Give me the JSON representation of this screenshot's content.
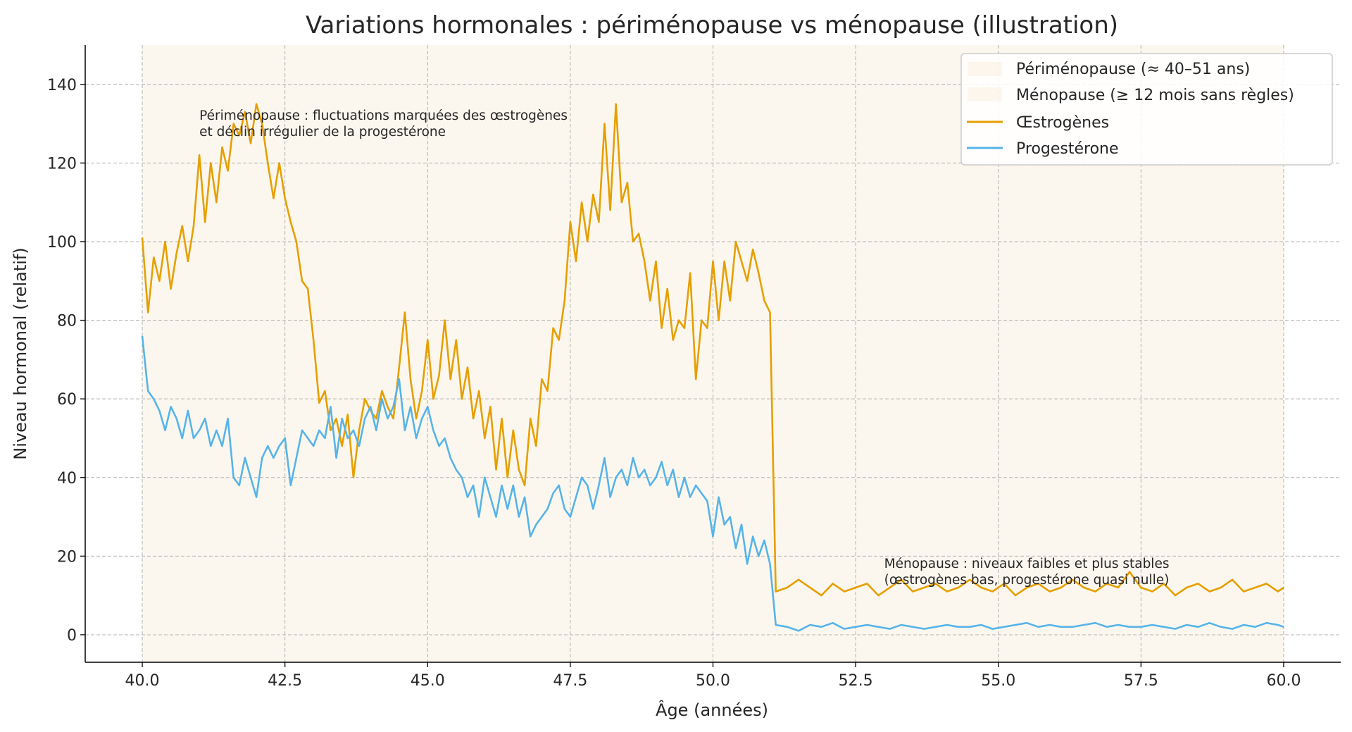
{
  "chart_data": {
    "type": "line",
    "title": "Variations hormonales : périménopause vs ménopause (illustration)",
    "xlabel": "Âge (années)",
    "ylabel": "Niveau hormonal (relatif)",
    "xlim": [
      39,
      61
    ],
    "ylim": [
      -7,
      150
    ],
    "xticks": [
      40.0,
      42.5,
      45.0,
      47.5,
      50.0,
      52.5,
      55.0,
      57.5,
      60.0
    ],
    "xtick_labels": [
      "40.0",
      "42.5",
      "45.0",
      "47.5",
      "50.0",
      "52.5",
      "55.0",
      "57.5",
      "60.0"
    ],
    "yticks": [
      0,
      20,
      40,
      60,
      80,
      100,
      120,
      140
    ],
    "ytick_labels": [
      "0",
      "20",
      "40",
      "60",
      "80",
      "100",
      "120",
      "140"
    ],
    "grid": true,
    "legend_placement": "top-right",
    "spans": [
      {
        "name": "Périménopause (≈ 40–51 ans)",
        "from": 40,
        "to": 51,
        "color": "#f5e6c8"
      },
      {
        "name": "Ménopause (≥ 12 mois sans règles)",
        "from": 51,
        "to": 60,
        "color": "#f5e6c8"
      }
    ],
    "x": [
      40.0,
      40.1,
      40.2,
      40.3,
      40.4,
      40.5,
      40.6,
      40.7,
      40.8,
      40.9,
      41.0,
      41.1,
      41.2,
      41.3,
      41.4,
      41.5,
      41.6,
      41.7,
      41.8,
      41.9,
      42.0,
      42.1,
      42.2,
      42.3,
      42.4,
      42.5,
      42.6,
      42.7,
      42.8,
      42.9,
      43.0,
      43.1,
      43.2,
      43.3,
      43.4,
      43.5,
      43.6,
      43.7,
      43.8,
      43.9,
      44.0,
      44.1,
      44.2,
      44.3,
      44.4,
      44.5,
      44.6,
      44.7,
      44.8,
      44.9,
      45.0,
      45.1,
      45.2,
      45.3,
      45.4,
      45.5,
      45.6,
      45.7,
      45.8,
      45.9,
      46.0,
      46.1,
      46.2,
      46.3,
      46.4,
      46.5,
      46.6,
      46.7,
      46.8,
      46.9,
      47.0,
      47.1,
      47.2,
      47.3,
      47.4,
      47.5,
      47.6,
      47.7,
      47.8,
      47.9,
      48.0,
      48.1,
      48.2,
      48.3,
      48.4,
      48.5,
      48.6,
      48.7,
      48.8,
      48.9,
      49.0,
      49.1,
      49.2,
      49.3,
      49.4,
      49.5,
      49.6,
      49.7,
      49.8,
      49.9,
      50.0,
      50.1,
      50.2,
      50.3,
      50.4,
      50.5,
      50.6,
      50.7,
      50.8,
      50.9,
      51.0,
      51.1,
      51.3,
      51.5,
      51.7,
      51.9,
      52.1,
      52.3,
      52.5,
      52.7,
      52.9,
      53.1,
      53.3,
      53.5,
      53.7,
      53.9,
      54.1,
      54.3,
      54.5,
      54.7,
      54.9,
      55.1,
      55.3,
      55.5,
      55.7,
      55.9,
      56.1,
      56.3,
      56.5,
      56.7,
      56.9,
      57.1,
      57.3,
      57.5,
      57.7,
      57.9,
      58.1,
      58.3,
      58.5,
      58.7,
      58.9,
      59.1,
      59.3,
      59.5,
      59.7,
      59.9,
      60.0
    ],
    "series": [
      {
        "name": "Œstrogènes",
        "color": "#e69f00",
        "values": [
          101,
          82,
          96,
          90,
          100,
          88,
          97,
          104,
          95,
          104,
          122,
          105,
          120,
          110,
          124,
          118,
          130,
          127,
          133,
          125,
          135,
          130,
          120,
          111,
          120,
          111,
          105,
          100,
          90,
          88,
          75,
          59,
          62,
          52,
          55,
          48,
          56,
          40,
          52,
          60,
          57,
          55,
          62,
          58,
          55,
          68,
          82,
          65,
          55,
          62,
          75,
          60,
          66,
          80,
          65,
          75,
          60,
          68,
          55,
          62,
          50,
          58,
          42,
          55,
          40,
          52,
          42,
          38,
          55,
          48,
          65,
          62,
          78,
          75,
          85,
          105,
          95,
          110,
          100,
          112,
          105,
          130,
          108,
          135,
          110,
          115,
          100,
          102,
          95,
          85,
          95,
          78,
          88,
          75,
          80,
          78,
          92,
          65,
          80,
          78,
          95,
          80,
          95,
          85,
          100,
          95,
          90,
          98,
          92,
          85,
          82,
          11,
          12,
          14,
          12,
          10,
          13,
          11,
          12,
          13,
          10,
          12,
          14,
          11,
          12,
          13,
          11,
          12,
          14,
          12,
          11,
          13,
          10,
          12,
          13,
          11,
          12,
          14,
          12,
          11,
          13,
          12,
          16,
          12,
          11,
          13,
          10,
          12,
          13,
          11,
          12,
          14,
          11,
          12,
          13,
          11,
          12
        ]
      },
      {
        "name": "Progestérone",
        "color": "#56b4e9",
        "values": [
          76,
          62,
          60,
          57,
          52,
          58,
          55,
          50,
          57,
          50,
          52,
          55,
          48,
          52,
          48,
          55,
          40,
          38,
          45,
          40,
          35,
          45,
          48,
          45,
          48,
          50,
          38,
          45,
          52,
          50,
          48,
          52,
          50,
          58,
          45,
          55,
          50,
          52,
          48,
          55,
          58,
          52,
          60,
          55,
          58,
          65,
          52,
          58,
          50,
          55,
          58,
          52,
          48,
          50,
          45,
          42,
          40,
          35,
          38,
          30,
          40,
          35,
          30,
          38,
          32,
          38,
          30,
          35,
          25,
          28,
          30,
          32,
          36,
          38,
          32,
          30,
          35,
          40,
          38,
          32,
          38,
          45,
          35,
          40,
          42,
          38,
          45,
          40,
          42,
          38,
          40,
          44,
          38,
          42,
          35,
          40,
          35,
          38,
          36,
          34,
          25,
          35,
          28,
          30,
          22,
          28,
          18,
          25,
          20,
          24,
          18,
          2.5,
          2,
          1,
          2.5,
          2,
          3,
          1.5,
          2,
          2.5,
          2,
          1.5,
          2.5,
          2,
          1.5,
          2,
          2.5,
          2,
          2,
          2.5,
          1.5,
          2,
          2.5,
          3,
          2,
          2.5,
          2,
          2,
          2.5,
          3,
          2,
          2.5,
          2,
          2,
          2.5,
          2,
          1.5,
          2.5,
          2,
          3,
          2,
          1.5,
          2.5,
          2,
          3,
          2.5,
          2
        ]
      }
    ],
    "annotations": [
      {
        "x": 41,
        "y": 131,
        "lines": [
          "Périménopause : fluctuations marquées des œstrogènes",
          "et déclin irrégulier de la progestérone"
        ]
      },
      {
        "x": 53,
        "y": 17,
        "lines": [
          "Ménopause : niveaux faibles et plus stables",
          "(œstrogènes bas, progestérone quasi nulle)"
        ]
      }
    ]
  }
}
